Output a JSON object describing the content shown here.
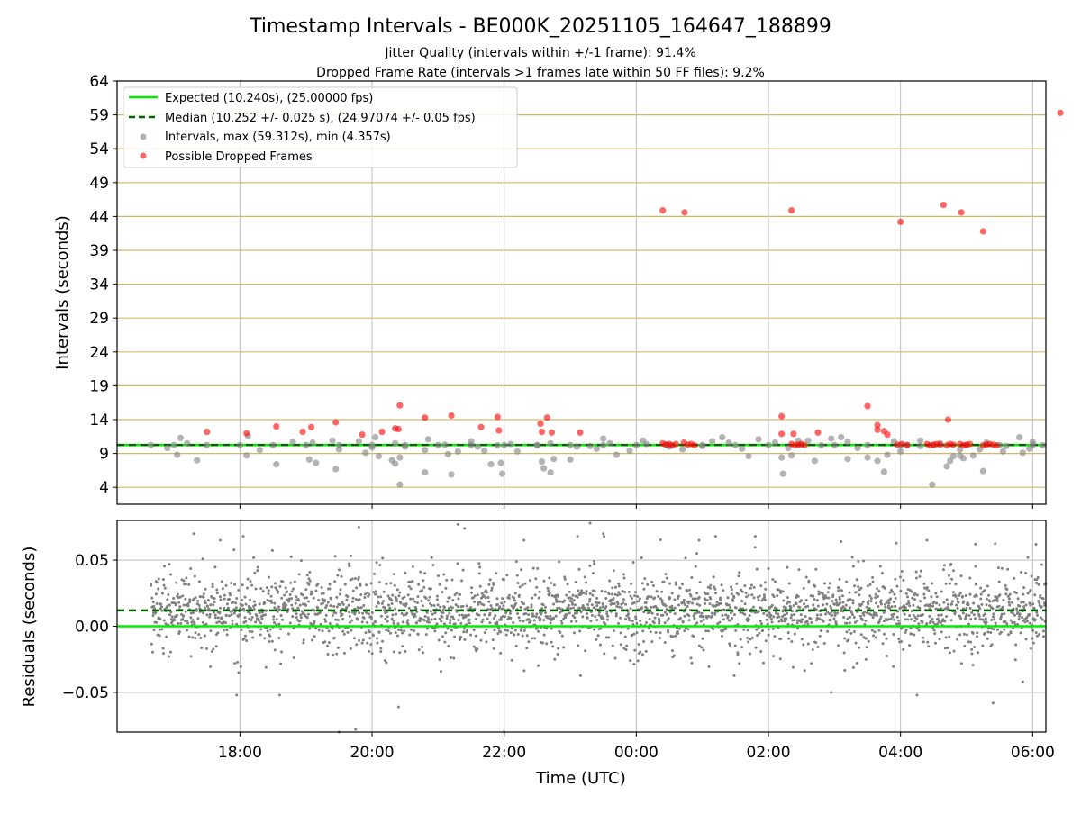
{
  "chart_data": [
    {
      "type": "scatter",
      "title": "Timestamp Intervals - BE000K_20251105_164647_188899",
      "subtitle_1": "Jitter Quality (intervals within +/-1 frame): 91.4%",
      "subtitle_2": "Dropped Frame Rate (intervals >1 frames late within 50 FF files): 9.2%",
      "xlabel": "",
      "ylabel": "Intervals (seconds)",
      "x_unit": "hours since 16:00 UTC",
      "xlim": [
        0.14,
        14.2
      ],
      "ylim": [
        1.5,
        64
      ],
      "yticks": [
        4,
        9,
        14,
        19,
        24,
        29,
        34,
        39,
        44,
        49,
        54,
        59,
        64
      ],
      "ytick_labels": [
        "4",
        "9",
        "14",
        "19",
        "24",
        "29",
        "34",
        "39",
        "44",
        "49",
        "54",
        "59",
        "64"
      ],
      "xticks": [
        2,
        4,
        6,
        8,
        10,
        12,
        14
      ],
      "grid": "on",
      "legend_position": "top-left",
      "legend": [
        "Expected (10.240s), (25.00000 fps)",
        "Median (10.252 +/- 0.025 s), (24.97074 +/- 0.05 fps)",
        "Intervals, max (59.312s), min (4.357s)",
        "Possible Dropped Frames"
      ],
      "expected": 10.24,
      "median": 10.252,
      "colors": {
        "expected": "#00ee00",
        "median": "#006400",
        "intervals": "#808080",
        "dropped": "#ff0000",
        "hgrid": "#d4b86a",
        "vgrid": "#bfbfbf"
      },
      "series": [
        {
          "name": "Intervals, max (59.312s), min (4.357s)",
          "points": [
            [
              0.65,
              10.24
            ],
            [
              1.0,
              10.24
            ],
            [
              1.5,
              10.24
            ],
            [
              2.0,
              10.24
            ],
            [
              2.5,
              10.24
            ],
            [
              3.0,
              10.24
            ],
            [
              3.5,
              10.24
            ],
            [
              4.0,
              10.24
            ],
            [
              4.5,
              10.24
            ],
            [
              5.0,
              10.24
            ],
            [
              5.5,
              10.24
            ],
            [
              6.0,
              10.24
            ],
            [
              6.5,
              10.24
            ],
            [
              7.0,
              10.24
            ],
            [
              7.5,
              10.24
            ],
            [
              8.0,
              10.24
            ],
            [
              8.5,
              10.24
            ],
            [
              9.0,
              10.24
            ],
            [
              9.5,
              10.24
            ],
            [
              10.0,
              10.24
            ],
            [
              10.5,
              10.24
            ],
            [
              11.0,
              10.24
            ],
            [
              11.5,
              10.24
            ],
            [
              12.0,
              10.24
            ],
            [
              12.5,
              10.24
            ],
            [
              13.0,
              10.24
            ],
            [
              13.5,
              10.24
            ],
            [
              14.0,
              10.24
            ],
            [
              0.9,
              9.8
            ],
            [
              1.05,
              8.8
            ],
            [
              1.1,
              11.3
            ],
            [
              1.2,
              10.5
            ],
            [
              1.35,
              8.0
            ],
            [
              2.1,
              8.7
            ],
            [
              2.12,
              11.6
            ],
            [
              2.3,
              9.5
            ],
            [
              2.55,
              7.4
            ],
            [
              2.8,
              10.7
            ],
            [
              3.05,
              8.1
            ],
            [
              3.1,
              10.6
            ],
            [
              3.15,
              7.6
            ],
            [
              3.4,
              10.9
            ],
            [
              3.45,
              6.7
            ],
            [
              3.5,
              9.6
            ],
            [
              3.8,
              10.8
            ],
            [
              3.9,
              9.1
            ],
            [
              4.0,
              9.9
            ],
            [
              4.05,
              11.4
            ],
            [
              4.1,
              8.6
            ],
            [
              4.3,
              8.0
            ],
            [
              4.35,
              10.5
            ],
            [
              4.5,
              10.0
            ],
            [
              4.8,
              9.5
            ],
            [
              4.85,
              11.1
            ],
            [
              5.1,
              10.3
            ],
            [
              5.3,
              9.3
            ],
            [
              5.5,
              10.8
            ],
            [
              5.6,
              10.0
            ],
            [
              5.7,
              9.4
            ],
            [
              5.9,
              10.2
            ],
            [
              6.1,
              10.4
            ],
            [
              6.5,
              10.2
            ],
            [
              6.7,
              10.5
            ],
            [
              7.1,
              10.0
            ],
            [
              7.3,
              10.1
            ],
            [
              7.5,
              11.2
            ],
            [
              7.7,
              8.8
            ],
            [
              7.9,
              9.4
            ],
            [
              8.1,
              10.9
            ],
            [
              8.45,
              10.3
            ],
            [
              8.7,
              9.6
            ],
            [
              9.0,
              10.1
            ],
            [
              9.3,
              11.4
            ],
            [
              9.4,
              10.6
            ],
            [
              9.6,
              9.7
            ],
            [
              9.85,
              11.1
            ],
            [
              10.1,
              10.6
            ],
            [
              10.2,
              8.4
            ],
            [
              10.3,
              9.8
            ],
            [
              10.6,
              10.9
            ],
            [
              10.8,
              10.2
            ],
            [
              11.1,
              11.4
            ],
            [
              11.2,
              10.7
            ],
            [
              11.5,
              8.4
            ],
            [
              11.65,
              7.9
            ],
            [
              11.8,
              8.8
            ],
            [
              12.1,
              10.3
            ],
            [
              12.3,
              10.9
            ],
            [
              12.6,
              10.5
            ],
            [
              12.9,
              9.6
            ],
            [
              13.1,
              8.7
            ],
            [
              13.3,
              10.6
            ],
            [
              13.55,
              9.3
            ],
            [
              13.8,
              11.4
            ],
            [
              13.85,
              9.1
            ],
            [
              14.0,
              10.7
            ],
            [
              14.15,
              10.2
            ],
            [
              4.35,
              7.5
            ],
            [
              4.42,
              8.4
            ],
            [
              4.42,
              4.4
            ],
            [
              4.8,
              6.2
            ],
            [
              5.2,
              5.9
            ],
            [
              5.15,
              8.9
            ],
            [
              5.8,
              7.4
            ],
            [
              5.95,
              7.6
            ],
            [
              5.97,
              6.0
            ],
            [
              6.57,
              7.8
            ],
            [
              6.6,
              6.8
            ],
            [
              6.7,
              6.2
            ],
            [
              6.75,
              8.2
            ],
            [
              6.2,
              9.3
            ],
            [
              7.0,
              8.1
            ],
            [
              7.4,
              9.7
            ],
            [
              7.6,
              10.5
            ],
            [
              8.15,
              10.4
            ],
            [
              8.5,
              10.0
            ],
            [
              9.15,
              10.8
            ],
            [
              9.7,
              8.6
            ],
            [
              10.22,
              6.0
            ],
            [
              10.35,
              8.7
            ],
            [
              10.45,
              10.9
            ],
            [
              10.7,
              7.9
            ],
            [
              10.95,
              11.2
            ],
            [
              11.2,
              8.2
            ],
            [
              11.35,
              9.8
            ],
            [
              11.75,
              6.3
            ],
            [
              11.9,
              10.8
            ],
            [
              12.0,
              9.3
            ],
            [
              12.3,
              10.1
            ],
            [
              12.48,
              4.4
            ],
            [
              12.7,
              7.1
            ],
            [
              12.75,
              7.9
            ],
            [
              12.8,
              8.6
            ],
            [
              12.9,
              8.7
            ],
            [
              12.95,
              8.3
            ],
            [
              13.25,
              6.4
            ],
            [
              13.2,
              9.6
            ],
            [
              13.6,
              10.1
            ],
            [
              13.95,
              9.7
            ]
          ]
        },
        {
          "name": "Possible Dropped Frames",
          "points": [
            [
              1.5,
              12.2
            ],
            [
              2.1,
              12.0
            ],
            [
              2.55,
              13.0
            ],
            [
              2.95,
              12.2
            ],
            [
              3.08,
              12.9
            ],
            [
              3.45,
              13.6
            ],
            [
              3.85,
              11.8
            ],
            [
              4.15,
              12.2
            ],
            [
              4.35,
              12.7
            ],
            [
              4.4,
              12.6
            ],
            [
              4.42,
              16.1
            ],
            [
              4.8,
              14.3
            ],
            [
              5.2,
              14.6
            ],
            [
              5.65,
              12.9
            ],
            [
              5.9,
              14.4
            ],
            [
              5.92,
              12.4
            ],
            [
              6.55,
              13.4
            ],
            [
              6.57,
              12.2
            ],
            [
              6.65,
              14.3
            ],
            [
              6.72,
              12.1
            ],
            [
              7.15,
              12.1
            ],
            [
              8.4,
              44.9
            ],
            [
              8.73,
              44.6
            ],
            [
              10.35,
              44.9
            ],
            [
              12.0,
              43.2
            ],
            [
              12.65,
              45.7
            ],
            [
              12.92,
              44.6
            ],
            [
              13.25,
              41.8
            ],
            [
              14.42,
              59.3
            ],
            [
              10.2,
              14.5
            ],
            [
              10.2,
              11.9
            ],
            [
              10.38,
              11.9
            ],
            [
              10.75,
              12.1
            ],
            [
              11.5,
              16.0
            ],
            [
              11.65,
              13.2
            ],
            [
              11.65,
              12.5
            ],
            [
              11.75,
              12.3
            ],
            [
              11.8,
              11.8
            ],
            [
              12.72,
              14.0
            ],
            [
              8.4,
              10.5
            ],
            [
              8.45,
              10.3
            ],
            [
              8.5,
              10.4
            ],
            [
              8.55,
              10.2
            ],
            [
              8.6,
              10.4
            ],
            [
              8.72,
              10.6
            ],
            [
              8.78,
              10.3
            ],
            [
              8.83,
              10.4
            ],
            [
              8.88,
              10.2
            ],
            [
              10.35,
              10.4
            ],
            [
              10.4,
              10.2
            ],
            [
              10.45,
              10.3
            ],
            [
              10.5,
              10.4
            ],
            [
              10.55,
              10.2
            ],
            [
              11.95,
              10.3
            ],
            [
              12.02,
              10.4
            ],
            [
              12.1,
              10.2
            ],
            [
              12.4,
              10.4
            ],
            [
              12.45,
              10.2
            ],
            [
              12.5,
              10.3
            ],
            [
              12.55,
              10.4
            ],
            [
              12.6,
              10.3
            ],
            [
              12.7,
              10.2
            ],
            [
              12.75,
              10.4
            ],
            [
              12.8,
              10.3
            ],
            [
              12.9,
              10.4
            ],
            [
              12.95,
              10.2
            ],
            [
              13.0,
              10.3
            ],
            [
              13.05,
              10.4
            ],
            [
              13.25,
              10.2
            ],
            [
              13.3,
              10.3
            ],
            [
              13.35,
              10.4
            ],
            [
              13.4,
              10.3
            ],
            [
              13.45,
              10.2
            ]
          ]
        }
      ]
    },
    {
      "type": "scatter",
      "title": "",
      "xlabel": "Time (UTC)",
      "ylabel": "Residuals (seconds)",
      "x_unit": "hours since 16:00 UTC",
      "xlim": [
        0.14,
        14.2
      ],
      "ylim": [
        -0.08,
        0.08
      ],
      "yticks": [
        -0.05,
        0.0,
        0.05
      ],
      "ytick_labels": [
        "−0.05",
        "0.00",
        "0.05"
      ],
      "xticks": [
        2,
        4,
        6,
        8,
        10,
        12,
        14
      ],
      "xtick_labels": [
        "18:00",
        "20:00",
        "22:00",
        "00:00",
        "02:00",
        "04:00",
        "06:00"
      ],
      "grid": "on",
      "expected_residual": 0.0,
      "median_residual": 0.012,
      "residual_summary": {
        "count": 2600,
        "x_start": 0.65,
        "x_end": 14.2,
        "center": 0.012,
        "spread_sd": 0.017
      },
      "outliers": [
        [
          1.3,
          0.07
        ],
        [
          1.7,
          0.065
        ],
        [
          1.95,
          -0.052
        ],
        [
          2.05,
          0.068
        ],
        [
          2.6,
          -0.052
        ],
        [
          3.5,
          -0.081
        ],
        [
          3.8,
          0.075
        ],
        [
          3.75,
          -0.078
        ],
        [
          4.4,
          -0.061
        ],
        [
          5.3,
          0.077
        ],
        [
          5.4,
          0.074
        ],
        [
          6.0,
          -0.08
        ],
        [
          6.3,
          0.065
        ],
        [
          7.3,
          0.078
        ],
        [
          7.5,
          0.07
        ],
        [
          8.95,
          0.065
        ],
        [
          9.2,
          0.068
        ],
        [
          9.8,
          0.068
        ],
        [
          10.95,
          -0.05
        ],
        [
          11.1,
          0.064
        ],
        [
          12.25,
          -0.052
        ],
        [
          12.4,
          0.065
        ],
        [
          13.4,
          -0.058
        ],
        [
          13.85,
          -0.042
        ],
        [
          14.05,
          0.062
        ]
      ],
      "colors": {
        "residuals": "#808080",
        "expected": "#00ee00",
        "median": "#006400",
        "grid": "#bfbfbf"
      }
    }
  ]
}
